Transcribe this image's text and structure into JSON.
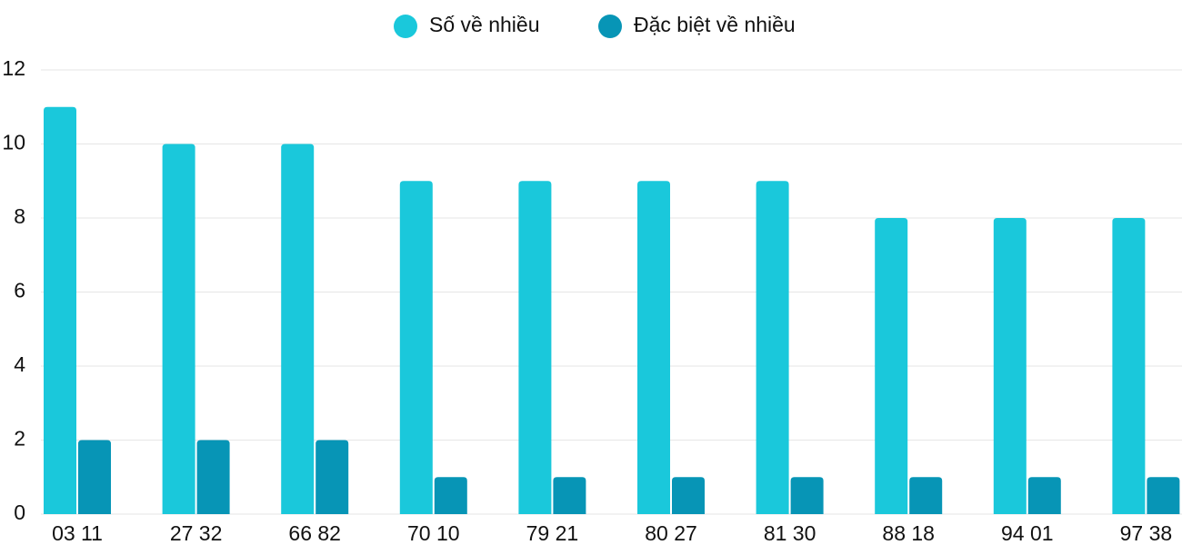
{
  "chart_data": {
    "type": "bar",
    "categories": [
      "03 11",
      "27 32",
      "66 82",
      "70 10",
      "79 21",
      "80 27",
      "81 30",
      "88 18",
      "94 01",
      "97 38"
    ],
    "series": [
      {
        "name": "Số về nhiều",
        "color": "#1ac8db",
        "values": [
          11,
          10,
          10,
          9,
          9,
          9,
          9,
          8,
          8,
          8
        ]
      },
      {
        "name": "Đặc biệt về nhiều",
        "color": "#0795b6",
        "values": [
          2,
          2,
          2,
          1,
          1,
          1,
          1,
          1,
          1,
          1
        ]
      }
    ],
    "ylim": [
      0,
      12
    ],
    "yticks": [
      0,
      2,
      4,
      6,
      8,
      10,
      12
    ],
    "grid": true
  }
}
